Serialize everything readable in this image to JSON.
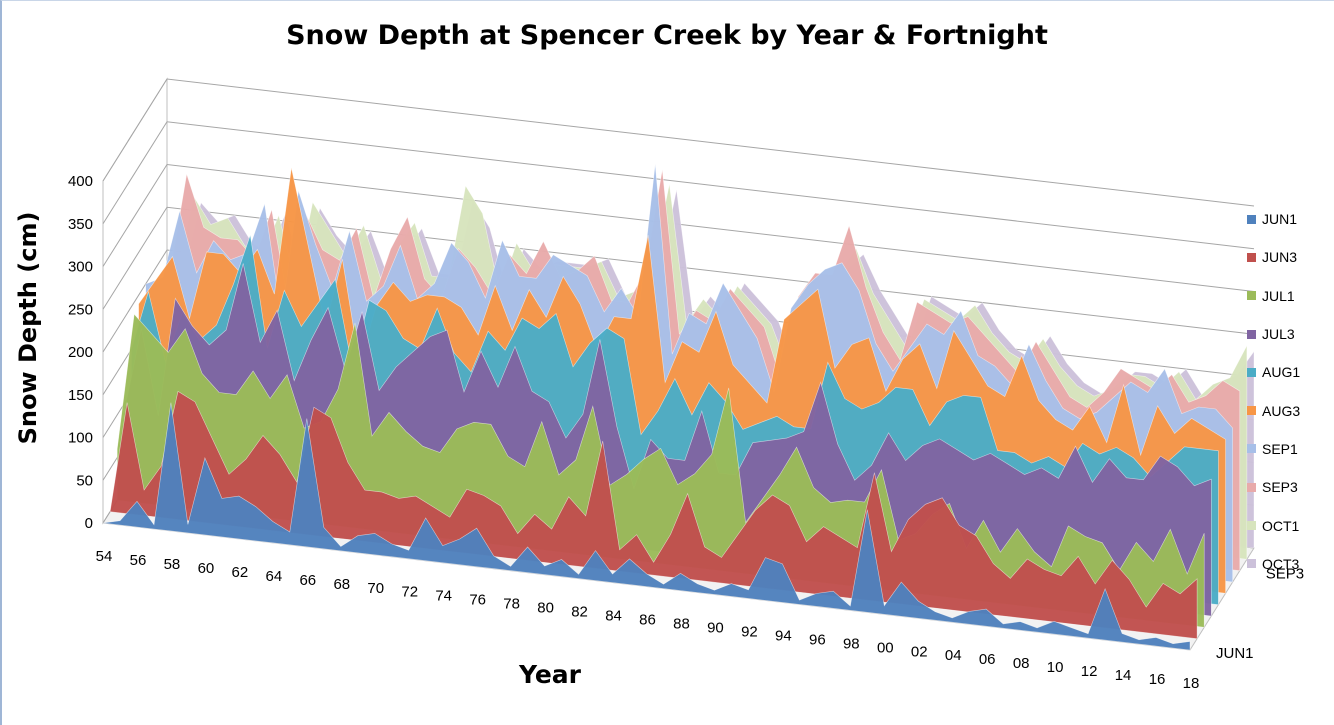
{
  "chart_data": {
    "type": "area",
    "variant": "3d-area",
    "title": "Snow Depth at Spencer Creek by Year & Fortnight",
    "xlabel": "Year",
    "ylabel": "Snow Depth (cm)",
    "ylim": [
      0,
      400
    ],
    "y_ticks": [
      "0",
      "50",
      "100",
      "150",
      "200",
      "250",
      "300",
      "350",
      "400"
    ],
    "grid": true,
    "legend_position": "right",
    "x_tick_labels": [
      "54",
      "56",
      "58",
      "60",
      "62",
      "64",
      "66",
      "68",
      "70",
      "72",
      "74",
      "76",
      "78",
      "80",
      "82",
      "84",
      "86",
      "88",
      "90",
      "92",
      "94",
      "96",
      "98",
      "00",
      "02",
      "04",
      "06",
      "08",
      "10",
      "12",
      "14",
      "16",
      "18"
    ],
    "depth_tick_labels": [
      "SEP3",
      "JUN1"
    ],
    "years": [
      "1954",
      "1955",
      "1956",
      "1957",
      "1958",
      "1959",
      "1960",
      "1961",
      "1962",
      "1963",
      "1964",
      "1965",
      "1966",
      "1967",
      "1968",
      "1969",
      "1970",
      "1971",
      "1972",
      "1973",
      "1974",
      "1975",
      "1976",
      "1977",
      "1978",
      "1979",
      "1980",
      "1981",
      "1982",
      "1983",
      "1984",
      "1985",
      "1986",
      "1987",
      "1988",
      "1989",
      "1990",
      "1991",
      "1992",
      "1993",
      "1994",
      "1995",
      "1996",
      "1997",
      "1998",
      "1999",
      "2000",
      "2001",
      "2002",
      "2003",
      "2004",
      "2005",
      "2006",
      "2007",
      "2008",
      "2009",
      "2010",
      "2011",
      "2012",
      "2013",
      "2014",
      "2015",
      "2016",
      "2017",
      "2018"
    ],
    "series": [
      {
        "name": "JUN1",
        "color": "#4f81bd",
        "values": [
          0,
          5,
          30,
          5,
          150,
          10,
          90,
          45,
          50,
          40,
          25,
          15,
          150,
          25,
          5,
          20,
          25,
          15,
          10,
          50,
          20,
          30,
          45,
          15,
          5,
          30,
          10,
          20,
          5,
          35,
          10,
          30,
          15,
          5,
          20,
          10,
          5,
          15,
          10,
          50,
          45,
          5,
          15,
          20,
          5,
          120,
          10,
          40,
          20,
          10,
          5,
          15,
          20,
          5,
          10,
          5,
          15,
          10,
          5,
          60,
          10,
          5,
          10,
          5,
          10
        ]
      },
      {
        "name": "JUN3",
        "color": "#c0504d",
        "values": [
          0,
          130,
          30,
          60,
          150,
          140,
          100,
          60,
          80,
          110,
          90,
          60,
          150,
          140,
          90,
          60,
          60,
          55,
          60,
          50,
          40,
          75,
          70,
          60,
          30,
          55,
          40,
          80,
          60,
          150,
          25,
          45,
          15,
          50,
          100,
          40,
          30,
          60,
          90,
          110,
          100,
          60,
          80,
          70,
          60,
          150,
          60,
          100,
          120,
          130,
          100,
          90,
          60,
          45,
          70,
          60,
          55,
          80,
          50,
          80,
          60,
          30,
          60,
          50,
          70
        ]
      },
      {
        "name": "JUL1",
        "color": "#9bbb59",
        "values": [
          60,
          220,
          200,
          180,
          210,
          160,
          140,
          140,
          170,
          140,
          170,
          110,
          120,
          160,
          240,
          110,
          140,
          120,
          105,
          100,
          130,
          140,
          140,
          105,
          95,
          150,
          90,
          110,
          175,
          85,
          100,
          120,
          135,
          95,
          110,
          135,
          215,
          60,
          90,
          120,
          155,
          110,
          95,
          100,
          100,
          140,
          60,
          70,
          95,
          110,
          60,
          95,
          60,
          90,
          65,
          50,
          100,
          90,
          85,
          55,
          90,
          70,
          110,
          60,
          110
        ]
      },
      {
        "name": "JUL3",
        "color": "#8064a2",
        "values": [
          90,
          190,
          90,
          230,
          200,
          180,
          200,
          280,
          190,
          230,
          150,
          200,
          240,
          170,
          240,
          150,
          180,
          200,
          220,
          230,
          160,
          210,
          170,
          220,
          170,
          160,
          120,
          150,
          240,
          140,
          70,
          130,
          110,
          110,
          170,
          100,
          100,
          140,
          145,
          150,
          160,
          220,
          150,
          110,
          130,
          170,
          140,
          160,
          170,
          160,
          150,
          160,
          150,
          140,
          150,
          140,
          180,
          140,
          170,
          150,
          150,
          180,
          170,
          150,
          160
        ]
      },
      {
        "name": "AUG1",
        "color": "#4bacc6",
        "values": [
          150,
          220,
          140,
          200,
          170,
          190,
          240,
          300,
          170,
          240,
          200,
          230,
          260,
          160,
          240,
          230,
          200,
          190,
          240,
          190,
          170,
          220,
          200,
          240,
          230,
          250,
          190,
          220,
          240,
          230,
          120,
          150,
          190,
          150,
          190,
          170,
          140,
          150,
          160,
          150,
          150,
          230,
          190,
          180,
          190,
          210,
          210,
          170,
          200,
          210,
          210,
          150,
          150,
          140,
          150,
          140,
          170,
          160,
          170,
          160,
          140,
          160,
          180,
          180,
          180
        ]
      },
      {
        "name": "AUG3",
        "color": "#f79646",
        "values": [
          190,
          220,
          250,
          180,
          260,
          260,
          240,
          270,
          220,
          370,
          280,
          190,
          270,
          150,
          220,
          250,
          230,
          240,
          240,
          230,
          200,
          260,
          210,
          260,
          230,
          280,
          250,
          200,
          240,
          240,
          340,
          170,
          220,
          210,
          260,
          200,
          180,
          160,
          260,
          280,
          300,
          210,
          240,
          250,
          190,
          230,
          250,
          200,
          270,
          240,
          210,
          200,
          250,
          200,
          180,
          170,
          200,
          160,
          230,
          150,
          210,
          180,
          200,
          190,
          180
        ]
      },
      {
        "name": "SEP1",
        "color": "#a7bfe8",
        "values": [
          200,
          210,
          290,
          220,
          260,
          240,
          250,
          310,
          180,
          330,
          270,
          220,
          290,
          210,
          230,
          280,
          220,
          240,
          290,
          270,
          230,
          300,
          260,
          260,
          290,
          280,
          270,
          230,
          260,
          230,
          410,
          190,
          240,
          230,
          280,
          250,
          220,
          160,
          260,
          290,
          310,
          320,
          290,
          230,
          200,
          230,
          260,
          250,
          280,
          230,
          220,
          200,
          250,
          210,
          180,
          170,
          180,
          200,
          220,
          210,
          240,
          190,
          200,
          200,
          180
        ]
      },
      {
        "name": "SEP3",
        "color": "#e8aaaa",
        "values": [
          180,
          200,
          320,
          260,
          250,
          250,
          230,
          290,
          180,
          290,
          250,
          240,
          280,
          200,
          260,
          300,
          230,
          210,
          270,
          250,
          220,
          270,
          250,
          290,
          250,
          260,
          280,
          230,
          230,
          270,
          390,
          200,
          230,
          220,
          260,
          240,
          220,
          160,
          260,
          290,
          290,
          350,
          280,
          230,
          200,
          270,
          260,
          250,
          260,
          240,
          220,
          200,
          240,
          210,
          180,
          170,
          190,
          220,
          210,
          200,
          220,
          190,
          200,
          220,
          210
        ]
      },
      {
        "name": "OCT1",
        "color": "#d7e4bd",
        "values": [
          170,
          190,
          280,
          250,
          260,
          230,
          220,
          270,
          190,
          290,
          260,
          230,
          270,
          210,
          250,
          280,
          220,
          220,
          330,
          300,
          210,
          270,
          240,
          250,
          250,
          250,
          260,
          220,
          230,
          260,
          360,
          200,
          230,
          210,
          250,
          230,
          210,
          160,
          250,
          270,
          280,
          310,
          260,
          230,
          200,
          260,
          250,
          240,
          260,
          230,
          210,
          200,
          230,
          200,
          180,
          170,
          180,
          200,
          200,
          190,
          210,
          180,
          200,
          210,
          250
        ]
      },
      {
        "name": "OCT3",
        "color": "#ccc1da",
        "values": [
          160,
          180,
          260,
          240,
          250,
          220,
          210,
          260,
          180,
          270,
          240,
          220,
          250,
          200,
          230,
          260,
          210,
          210,
          300,
          270,
          200,
          250,
          230,
          240,
          240,
          240,
          250,
          210,
          220,
          240,
          340,
          190,
          220,
          200,
          240,
          220,
          200,
          150,
          240,
          260,
          270,
          290,
          250,
          220,
          190,
          250,
          240,
          230,
          250,
          220,
          200,
          190,
          220,
          190,
          170,
          160,
          170,
          190,
          190,
          180,
          200,
          170,
          190,
          200,
          230
        ]
      }
    ]
  }
}
